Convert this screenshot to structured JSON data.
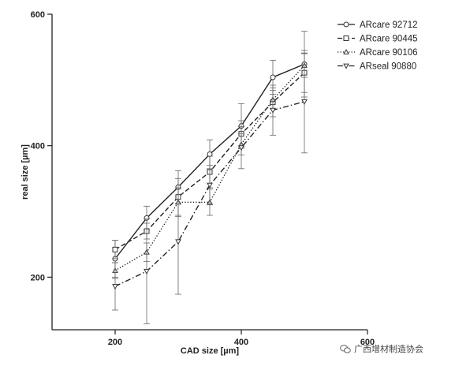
{
  "chart_data": {
    "type": "line",
    "xlabel": "CAD size [µm]",
    "ylabel": "real size [µm]",
    "xlim": [
      100,
      600
    ],
    "ylim": [
      120,
      600
    ],
    "xticks": [
      200,
      400,
      600
    ],
    "yticks": [
      200,
      400,
      600
    ],
    "legend_position": "top-right",
    "grid": false,
    "series": [
      {
        "name": "ARcare 92712",
        "marker": "circle",
        "dash": "solid",
        "x": [
          200,
          250,
          300,
          350,
          400,
          450,
          500
        ],
        "y": [
          228,
          290,
          337,
          387,
          430,
          504,
          524
        ],
        "err": [
          28,
          18,
          25,
          22,
          34,
          26,
          50
        ]
      },
      {
        "name": "ARcare 90445",
        "marker": "square",
        "dash": "longdash",
        "x": [
          200,
          250,
          300,
          350,
          400,
          450,
          500
        ],
        "y": [
          242,
          270,
          322,
          360,
          418,
          466,
          511
        ],
        "err": [
          14,
          12,
          28,
          24,
          20,
          22,
          30
        ]
      },
      {
        "name": "ARcare 90106",
        "marker": "triangle-up",
        "dash": "dotted",
        "x": [
          200,
          250,
          300,
          350,
          400,
          450,
          500
        ],
        "y": [
          210,
          238,
          314,
          314,
          402,
          470,
          522
        ],
        "err": [
          12,
          14,
          22,
          20,
          16,
          14,
          18
        ]
      },
      {
        "name": "ARseal 90880",
        "marker": "triangle-down",
        "dash": "dashdot",
        "x": [
          200,
          250,
          300,
          350,
          400,
          450,
          500
        ],
        "y": [
          186,
          209,
          254,
          340,
          397,
          454,
          467
        ],
        "err": [
          36,
          80,
          80,
          30,
          32,
          38,
          78
        ]
      }
    ]
  },
  "watermark": {
    "text": "广西增材制造协会",
    "icon": "wechat-icon"
  }
}
